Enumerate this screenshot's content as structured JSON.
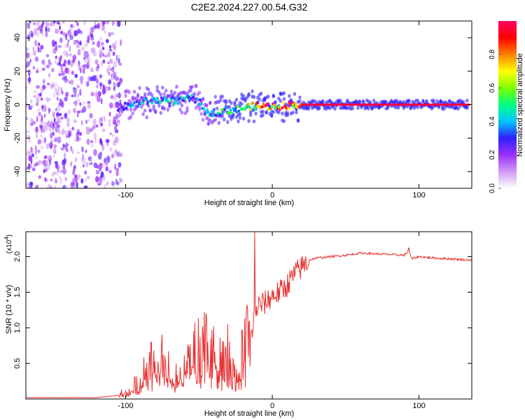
{
  "title": "C2E2.2024.227.00.54.G32",
  "chart_data": [
    {
      "type": "heatmap",
      "xlabel": "Height of straight line (km)",
      "ylabel": "Frequency (Hz)",
      "xlim": [
        -168,
        136
      ],
      "ylim": [
        -50,
        50
      ],
      "x_ticks": [
        -100,
        0,
        100
      ],
      "y_ticks": [
        -40,
        -20,
        0,
        20,
        40
      ],
      "colorbar": {
        "label": "Normalized spectral amplitude",
        "range": [
          0,
          1
        ],
        "ticks": [
          0.0,
          0.2,
          0.4,
          0.6,
          0.8
        ],
        "tick_labels": [
          "0.0",
          "0.2",
          "0.4",
          "0.6",
          "0.8"
        ],
        "colors": [
          "#ffffff",
          "#cf9af0",
          "#9b30ff",
          "#3020ff",
          "#00c8ff",
          "#00ff80",
          "#80ff00",
          "#ffff00",
          "#ff8000",
          "#ff0000",
          "#ff0060"
        ]
      },
      "noise_region_x": [
        -168,
        -103
      ],
      "ridge": {
        "x": [
          -105,
          -95,
          -85,
          -75,
          -65,
          -55,
          -50,
          -45,
          -35,
          -25,
          -15,
          -5,
          5,
          15,
          25,
          50,
          100,
          136
        ],
        "freq_hz": [
          -2,
          0,
          2,
          3,
          2,
          4,
          2,
          -5,
          -4,
          -3,
          -1,
          -1,
          -1,
          0,
          0,
          0,
          0,
          0
        ],
        "amplitude": [
          0.25,
          0.35,
          0.4,
          0.4,
          0.4,
          0.35,
          0.3,
          0.35,
          0.45,
          0.5,
          0.65,
          0.8,
          0.85,
          0.9,
          0.95,
          0.97,
          0.97,
          0.95
        ]
      }
    },
    {
      "type": "line",
      "xlabel": "Height of straight line (km)",
      "ylabel": "SNR (10 * v/v)",
      "y_scale_label": "(x10",
      "y_scale_exponent": "4",
      "y_scale_suffix": ")",
      "xlim": [
        -168,
        136
      ],
      "ylim": [
        0,
        2.35
      ],
      "x_ticks": [
        -100,
        0,
        100
      ],
      "y_ticks": [
        0.5,
        1.0,
        1.5,
        2.0
      ],
      "y_tick_labels": [
        "0.5",
        "1.0",
        "1.5",
        "2.0"
      ],
      "series": [
        {
          "color": "#e83030",
          "x": [
            -168,
            -120,
            -105,
            -95,
            -90,
            -85,
            -80,
            -75,
            -70,
            -65,
            -60,
            -55,
            -50,
            -45,
            -40,
            -35,
            -30,
            -25,
            -20,
            -15,
            -12,
            -10,
            -5,
            0,
            5,
            10,
            15,
            20,
            25,
            30,
            40,
            50,
            60,
            70,
            80,
            90,
            93,
            95,
            100,
            110,
            120,
            136
          ],
          "y": [
            0.02,
            0.02,
            0.05,
            0.15,
            0.25,
            0.4,
            0.45,
            0.5,
            0.35,
            0.25,
            0.4,
            0.55,
            0.6,
            0.7,
            0.55,
            0.5,
            0.55,
            0.35,
            0.6,
            0.8,
            1.2,
            1.3,
            1.35,
            1.45,
            1.5,
            1.6,
            1.75,
            1.85,
            1.95,
            1.98,
            2.0,
            2.02,
            2.05,
            2.04,
            2.03,
            2.02,
            2.08,
            1.97,
            2.0,
            1.98,
            1.97,
            1.95
          ]
        }
      ]
    }
  ]
}
